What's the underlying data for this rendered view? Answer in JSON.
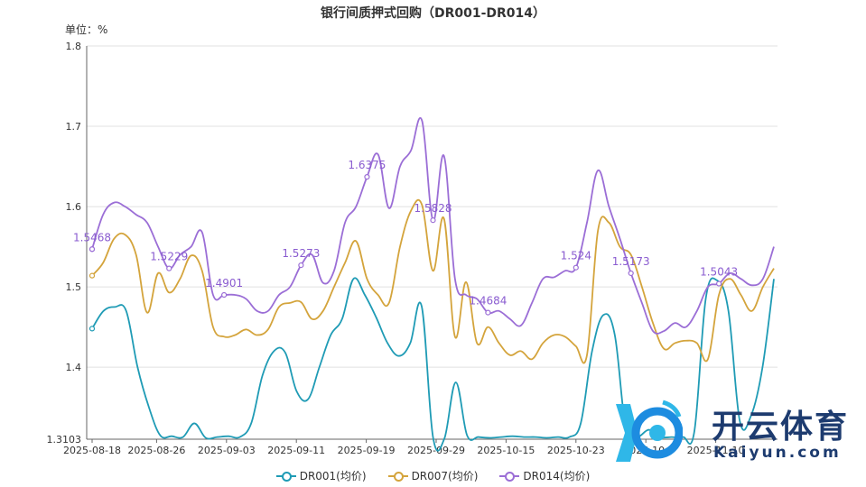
{
  "chart_data": {
    "type": "line",
    "title": "银行间质押式回购（DR001-DR014）",
    "unit_label": "单位：%",
    "ylim": [
      1.3103,
      1.8
    ],
    "y_ticks": [
      "1.8",
      "1.7",
      "1.6",
      "1.5",
      "1.4",
      "1.3103"
    ],
    "grid": true,
    "legend_position": "bottom",
    "x_tick_labels": [
      "2025-08-18",
      "2025-08-26",
      "2025-09-03",
      "2025-09-11",
      "2025-09-19",
      "2025-09-29",
      "2025-10-15",
      "2025-10-23",
      "2025-10-31",
      "2025-11-10"
    ],
    "x_tick_labels_visible": [
      "2025-08-18",
      "2025-08-26",
      "2025-09-03",
      "2025-09-11",
      "2025-09-19",
      "2025-09-29",
      "2025-10-15",
      "2025-10-23",
      "2025-10-",
      "2025-11-10"
    ],
    "series": [
      {
        "name": "DR001(均价)",
        "color": "#1f9bb5",
        "values": [
          1.448,
          1.47,
          1.475,
          1.47,
          1.4,
          1.35,
          1.315,
          1.314,
          1.313,
          1.33,
          1.312,
          1.313,
          1.314,
          1.313,
          1.33,
          1.39,
          1.42,
          1.418,
          1.37,
          1.36,
          1.4,
          1.44,
          1.46,
          1.51,
          1.49,
          1.462,
          1.43,
          1.414,
          1.43,
          1.476,
          1.313,
          1.311,
          1.381,
          1.315,
          1.313,
          1.312,
          1.313,
          1.314,
          1.313,
          1.313,
          1.312,
          1.313,
          1.313,
          1.33,
          1.42,
          1.465,
          1.44,
          1.32,
          1.313,
          1.322,
          1.313,
          1.313,
          1.313,
          1.32,
          1.485,
          1.508,
          1.47,
          1.333,
          1.34,
          1.4,
          1.51
        ]
      },
      {
        "name": "DR007(均价)",
        "color": "#d4a43c",
        "values": [
          1.514,
          1.53,
          1.56,
          1.565,
          1.54,
          1.468,
          1.517,
          1.493,
          1.51,
          1.539,
          1.52,
          1.45,
          1.438,
          1.44,
          1.447,
          1.44,
          1.447,
          1.475,
          1.48,
          1.481,
          1.46,
          1.47,
          1.5,
          1.53,
          1.557,
          1.51,
          1.49,
          1.48,
          1.55,
          1.595,
          1.602,
          1.52,
          1.585,
          1.438,
          1.506,
          1.43,
          1.45,
          1.43,
          1.415,
          1.42,
          1.41,
          1.43,
          1.44,
          1.438,
          1.426,
          1.415,
          1.57,
          1.58,
          1.55,
          1.54,
          1.5,
          1.455,
          1.423,
          1.43,
          1.433,
          1.43,
          1.41,
          1.49,
          1.51,
          1.49,
          1.47,
          1.5,
          1.523
        ]
      },
      {
        "name": "DR014(均价)",
        "color": "#9b6ed6",
        "values": [
          1.547,
          1.59,
          1.605,
          1.6,
          1.59,
          1.58,
          1.55,
          1.523,
          1.54,
          1.55,
          1.568,
          1.49,
          1.49,
          1.49,
          1.485,
          1.47,
          1.47,
          1.49,
          1.5,
          1.527,
          1.54,
          1.505,
          1.52,
          1.58,
          1.6,
          1.637,
          1.665,
          1.598,
          1.65,
          1.67,
          1.707,
          1.583,
          1.663,
          1.51,
          1.49,
          1.485,
          1.468,
          1.47,
          1.46,
          1.452,
          1.48,
          1.51,
          1.512,
          1.52,
          1.524,
          1.58,
          1.645,
          1.6,
          1.56,
          1.517,
          1.48,
          1.445,
          1.445,
          1.455,
          1.45,
          1.47,
          1.5,
          1.504,
          1.517,
          1.51,
          1.502,
          1.51,
          1.55
        ]
      }
    ],
    "annotations": [
      {
        "series": 2,
        "index": 0,
        "label": "1.5468"
      },
      {
        "series": 2,
        "index": 7,
        "label": "1.5229"
      },
      {
        "series": 2,
        "index": 12,
        "label": "1.4901"
      },
      {
        "series": 2,
        "index": 19,
        "label": "1.5273"
      },
      {
        "series": 2,
        "index": 25,
        "label": "1.6375"
      },
      {
        "series": 2,
        "index": 31,
        "label": "1.5828"
      },
      {
        "series": 2,
        "index": 36,
        "label": "1.4684"
      },
      {
        "series": 2,
        "index": 44,
        "label": "1.524"
      },
      {
        "series": 2,
        "index": 49,
        "label": "1.5173"
      },
      {
        "series": 2,
        "index": 57,
        "label": "1.5043"
      }
    ]
  },
  "watermark": {
    "brand": "开云体育",
    "domain": "Kaiyun.com"
  }
}
